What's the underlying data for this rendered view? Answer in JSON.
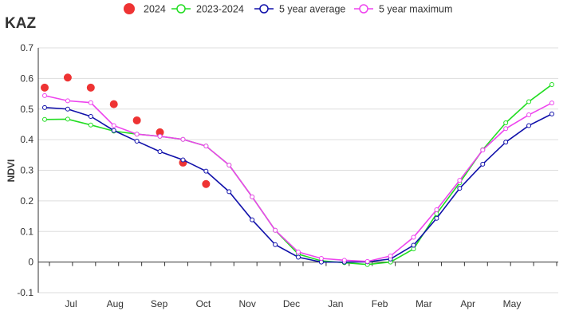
{
  "chart_data": {
    "type": "line",
    "title": "KAZ",
    "xlabel": "",
    "ylabel": "NDVI",
    "ylim": [
      -0.1,
      0.7
    ],
    "yticks": [
      "-0.1",
      "0",
      "0.1",
      "0.2",
      "0.3",
      "0.4",
      "0.5",
      "0.6",
      "0.7"
    ],
    "month_labels": [
      "Jul",
      "Aug",
      "Sep",
      "Oct",
      "Nov",
      "Dec",
      "Jan",
      "Feb",
      "Mar",
      "Apr",
      "May"
    ],
    "grid": true,
    "legend_position": "top",
    "series": [
      {
        "name": "2024",
        "style": "dots",
        "color": "#ee3333",
        "values": [
          0.57,
          0.603,
          0.57,
          0.516,
          0.463,
          0.424,
          0.325,
          0.255
        ]
      },
      {
        "name": "2023-2024",
        "style": "line",
        "color": "#22dd22",
        "values": [
          0.466,
          0.467,
          0.448,
          0.428,
          0.418,
          0.411,
          0.401,
          0.379,
          0.317,
          0.213,
          0.104,
          0.026,
          0.004,
          -0.002,
          -0.008,
          0.0,
          0.043,
          0.158,
          0.259,
          0.367,
          0.455,
          0.524,
          0.58
        ]
      },
      {
        "name": "5 year average",
        "style": "line",
        "color": "#1010aa",
        "values": [
          0.505,
          0.5,
          0.476,
          0.43,
          0.395,
          0.361,
          0.334,
          0.297,
          0.23,
          0.138,
          0.057,
          0.016,
          0.0,
          0.0,
          0.001,
          0.01,
          0.055,
          0.143,
          0.241,
          0.32,
          0.392,
          0.446,
          0.484
        ]
      },
      {
        "name": "5 year maximum",
        "style": "line",
        "color": "#ee44ee",
        "values": [
          0.544,
          0.527,
          0.521,
          0.446,
          0.418,
          0.411,
          0.401,
          0.379,
          0.317,
          0.213,
          0.104,
          0.033,
          0.012,
          0.006,
          0.002,
          0.02,
          0.081,
          0.171,
          0.267,
          0.366,
          0.436,
          0.481,
          0.52
        ]
      }
    ]
  }
}
